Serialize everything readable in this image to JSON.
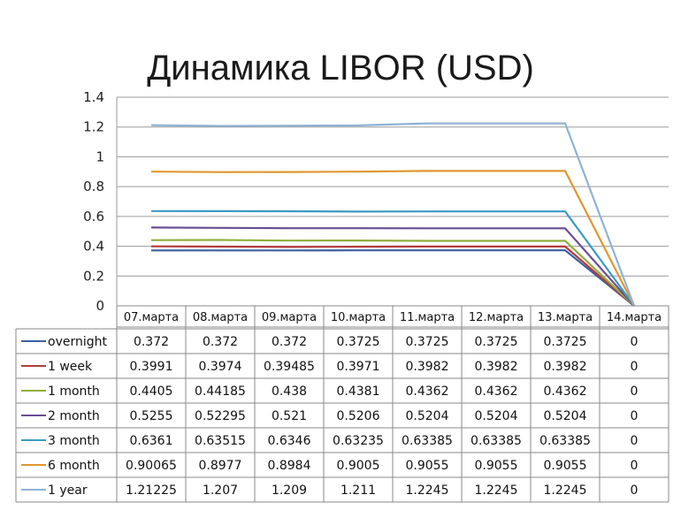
{
  "chart_data": {
    "type": "line",
    "title": "Динамика LIBOR (USD)",
    "categories": [
      "07.марта",
      "08.марта",
      "09.марта",
      "10.марта",
      "11.марта",
      "12.марта",
      "13.марта",
      "14.марта"
    ],
    "ylim": [
      0,
      1.4
    ],
    "yticks": [
      "0",
      "0.2",
      "0.4",
      "0.6",
      "0.8",
      "1",
      "1.2",
      "1.4"
    ],
    "grid": true,
    "legend_placement": "data-table-left",
    "series": [
      {
        "name": "overnight",
        "color": "#3b5f9e",
        "values": [
          0.372,
          0.372,
          0.372,
          0.3725,
          0.3725,
          0.3725,
          0.3725,
          0
        ],
        "labels": [
          "0.372",
          "0.372",
          "0.372",
          "0.3725",
          "0.3725",
          "0.3725",
          "0.3725",
          "0"
        ]
      },
      {
        "name": "1 week",
        "color": "#b23b3b",
        "values": [
          0.3991,
          0.3974,
          0.39485,
          0.3971,
          0.3982,
          0.3982,
          0.3982,
          0
        ],
        "labels": [
          "0.3991",
          "0.3974",
          "0.39485",
          "0.3971",
          "0.3982",
          "0.3982",
          "0.3982",
          "0"
        ]
      },
      {
        "name": "1 month",
        "color": "#8fae3c",
        "values": [
          0.4405,
          0.44185,
          0.438,
          0.4381,
          0.4362,
          0.4362,
          0.4362,
          0
        ],
        "labels": [
          "0.4405",
          "0.44185",
          "0.438",
          "0.4381",
          "0.4362",
          "0.4362",
          "0.4362",
          "0"
        ]
      },
      {
        "name": "2 month",
        "color": "#6a4c93",
        "values": [
          0.5255,
          0.52295,
          0.521,
          0.5206,
          0.5204,
          0.5204,
          0.5204,
          0
        ],
        "labels": [
          "0.5255",
          "0.52295",
          "0.521",
          "0.5206",
          "0.5204",
          "0.5204",
          "0.5204",
          "0"
        ]
      },
      {
        "name": "3 month",
        "color": "#3a9ac4",
        "values": [
          0.6361,
          0.63515,
          0.6346,
          0.63235,
          0.63385,
          0.63385,
          0.63385,
          0
        ],
        "labels": [
          "0.6361",
          "0.63515",
          "0.6346",
          "0.63235",
          "0.63385",
          "0.63385",
          "0.63385",
          "0"
        ]
      },
      {
        "name": "6 month",
        "color": "#e0962e",
        "values": [
          0.90065,
          0.8977,
          0.8984,
          0.9005,
          0.9055,
          0.9055,
          0.9055,
          0
        ],
        "labels": [
          "0.90065",
          "0.8977",
          "0.8984",
          "0.9005",
          "0.9055",
          "0.9055",
          "0.9055",
          "0"
        ]
      },
      {
        "name": "1 year",
        "color": "#8fb2d6",
        "values": [
          1.21225,
          1.207,
          1.209,
          1.211,
          1.2245,
          1.2245,
          1.2245,
          0
        ],
        "labels": [
          "1.21225",
          "1.207",
          "1.209",
          "1.211",
          "1.2245",
          "1.2245",
          "1.2245",
          "0"
        ]
      }
    ]
  }
}
